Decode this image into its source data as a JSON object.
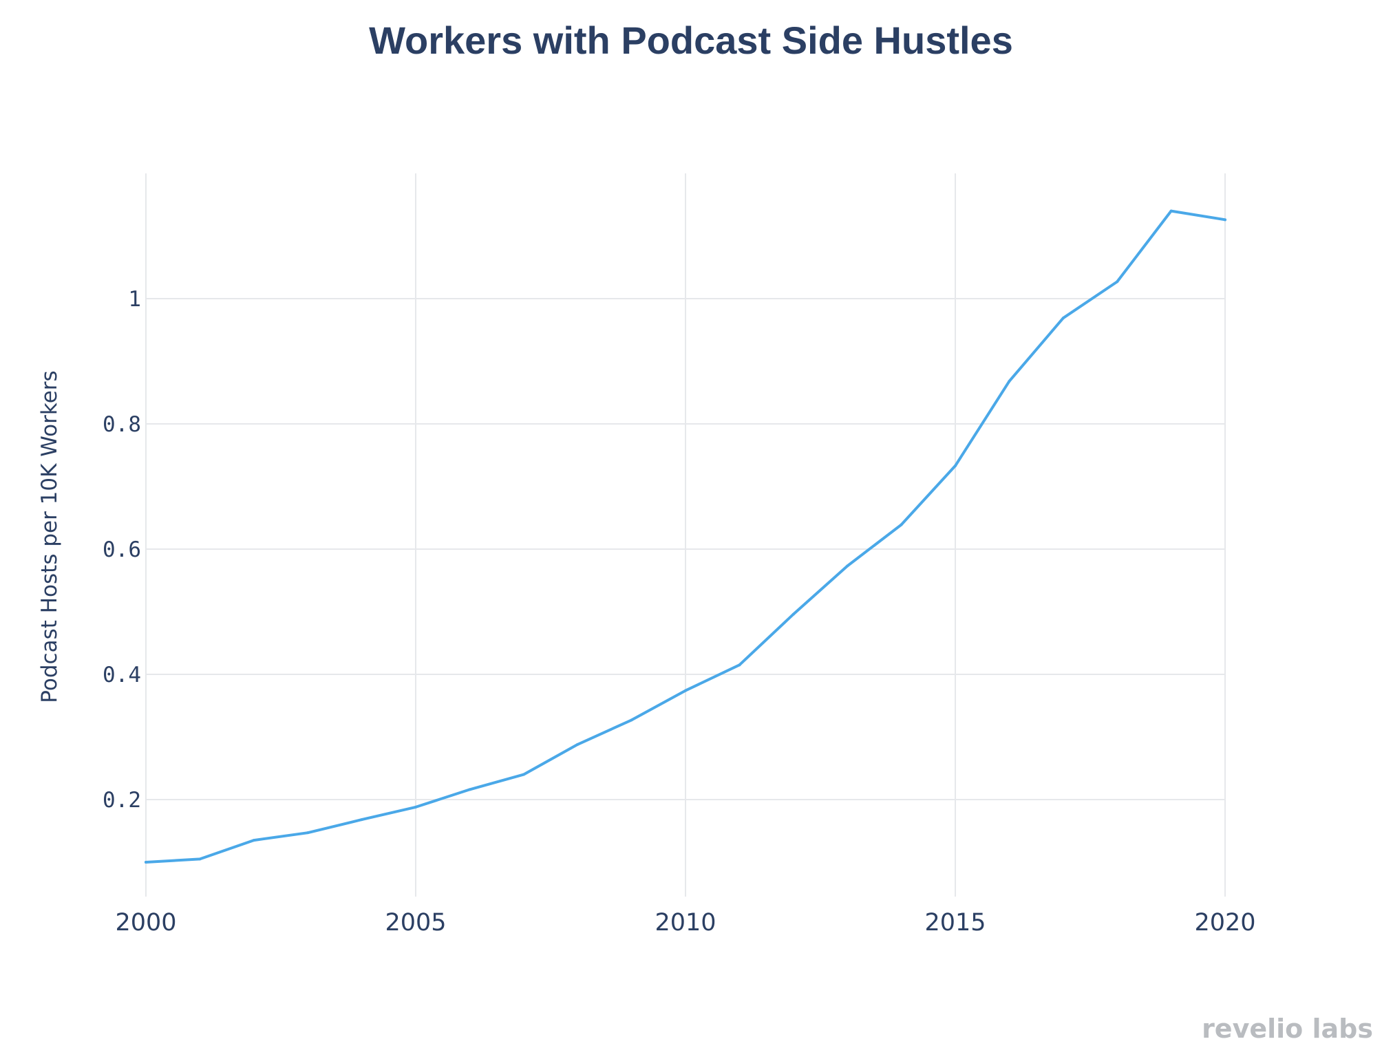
{
  "chart_data": {
    "type": "line",
    "title": "Workers with Podcast Side Hustles",
    "xlabel": "",
    "ylabel": "Podcast Hosts per 10K Workers",
    "x": [
      2000,
      2001,
      2002,
      2003,
      2004,
      2005,
      2006,
      2007,
      2008,
      2009,
      2010,
      2011,
      2012,
      2013,
      2014,
      2015,
      2016,
      2017,
      2018,
      2019,
      2020
    ],
    "series": [
      {
        "values": [
          0.1,
          0.105,
          0.135,
          0.147,
          0.168,
          0.188,
          0.216,
          0.24,
          0.288,
          0.327,
          0.374,
          0.415,
          0.496,
          0.573,
          0.639,
          0.733,
          0.868,
          0.969,
          1.027,
          1.14,
          1.126
        ],
        "color": "#4aa8e8"
      }
    ],
    "xlim": [
      2000,
      2020
    ],
    "ylim": [
      0.045,
      1.2
    ],
    "xticks": [
      2000,
      2005,
      2010,
      2015,
      2020
    ],
    "xtick_labels": [
      "2000",
      "2005",
      "2010",
      "2015",
      "2020"
    ],
    "yticks": [
      0.2,
      0.4,
      0.6,
      0.8,
      1.0
    ],
    "ytick_labels": [
      "0.2",
      "0.4",
      "0.6",
      "0.8",
      "1"
    ],
    "grid": true,
    "legend": "none"
  },
  "watermark": {
    "text": "revelio labs"
  }
}
